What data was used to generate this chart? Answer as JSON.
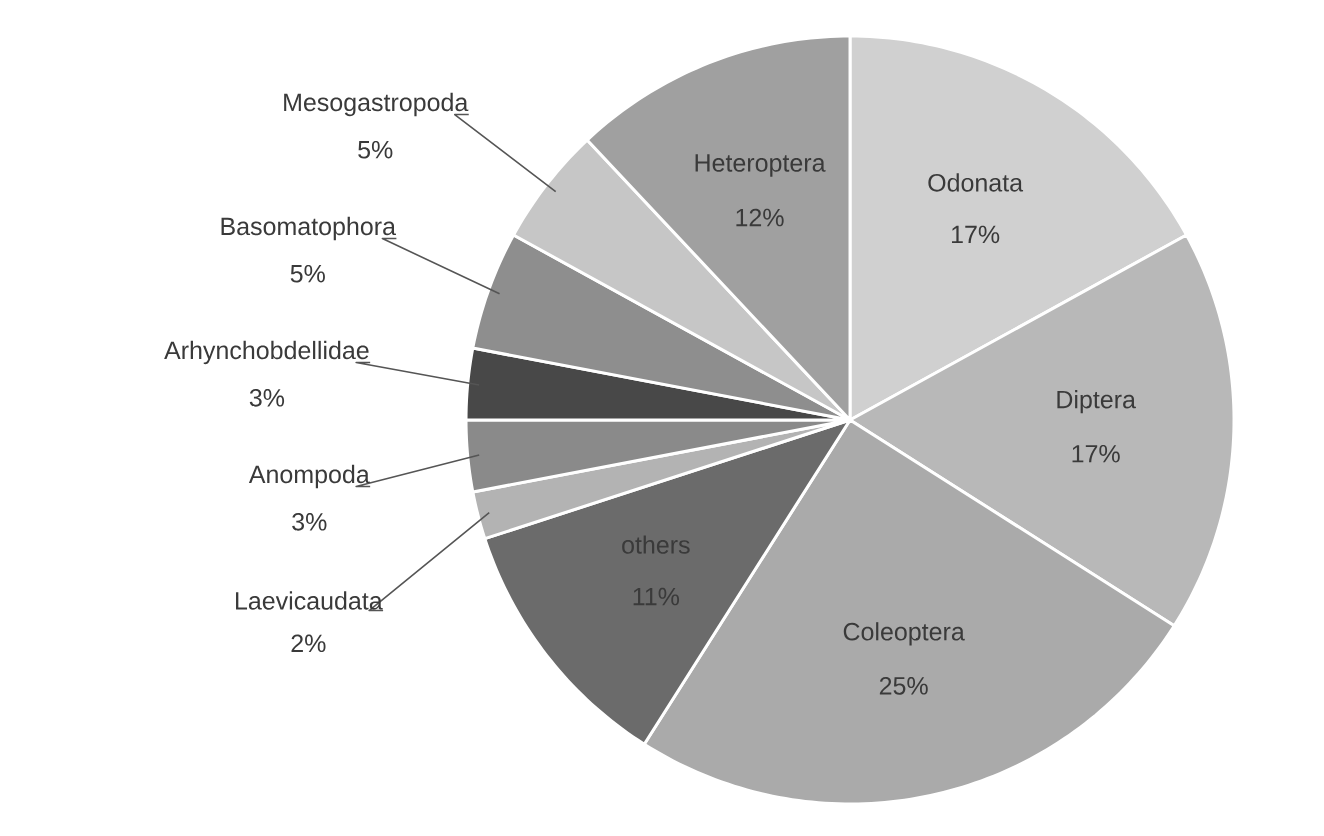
{
  "chart_data": {
    "type": "pie",
    "categories": [
      "Odonata",
      "Diptera",
      "Coleoptera",
      "others",
      "Laevicaudata",
      "Anompoda",
      "Arhynchobdellidae",
      "Basomatophora",
      "Mesogastropoda",
      "Heteroptera"
    ],
    "values": [
      17,
      17,
      25,
      11,
      2,
      3,
      3,
      5,
      5,
      12
    ],
    "value_labels": [
      "17%",
      "17%",
      "25%",
      "11%",
      "2%",
      "3%",
      "3%",
      "5%",
      "5%",
      "12%"
    ],
    "colors": [
      "#d0d0d0",
      "#b8b8b8",
      "#aaaaaa",
      "#6b6b6b",
      "#b3b3b3",
      "#8a8a8a",
      "#484848",
      "#8e8e8e",
      "#c6c6c6",
      "#a0a0a0"
    ]
  }
}
